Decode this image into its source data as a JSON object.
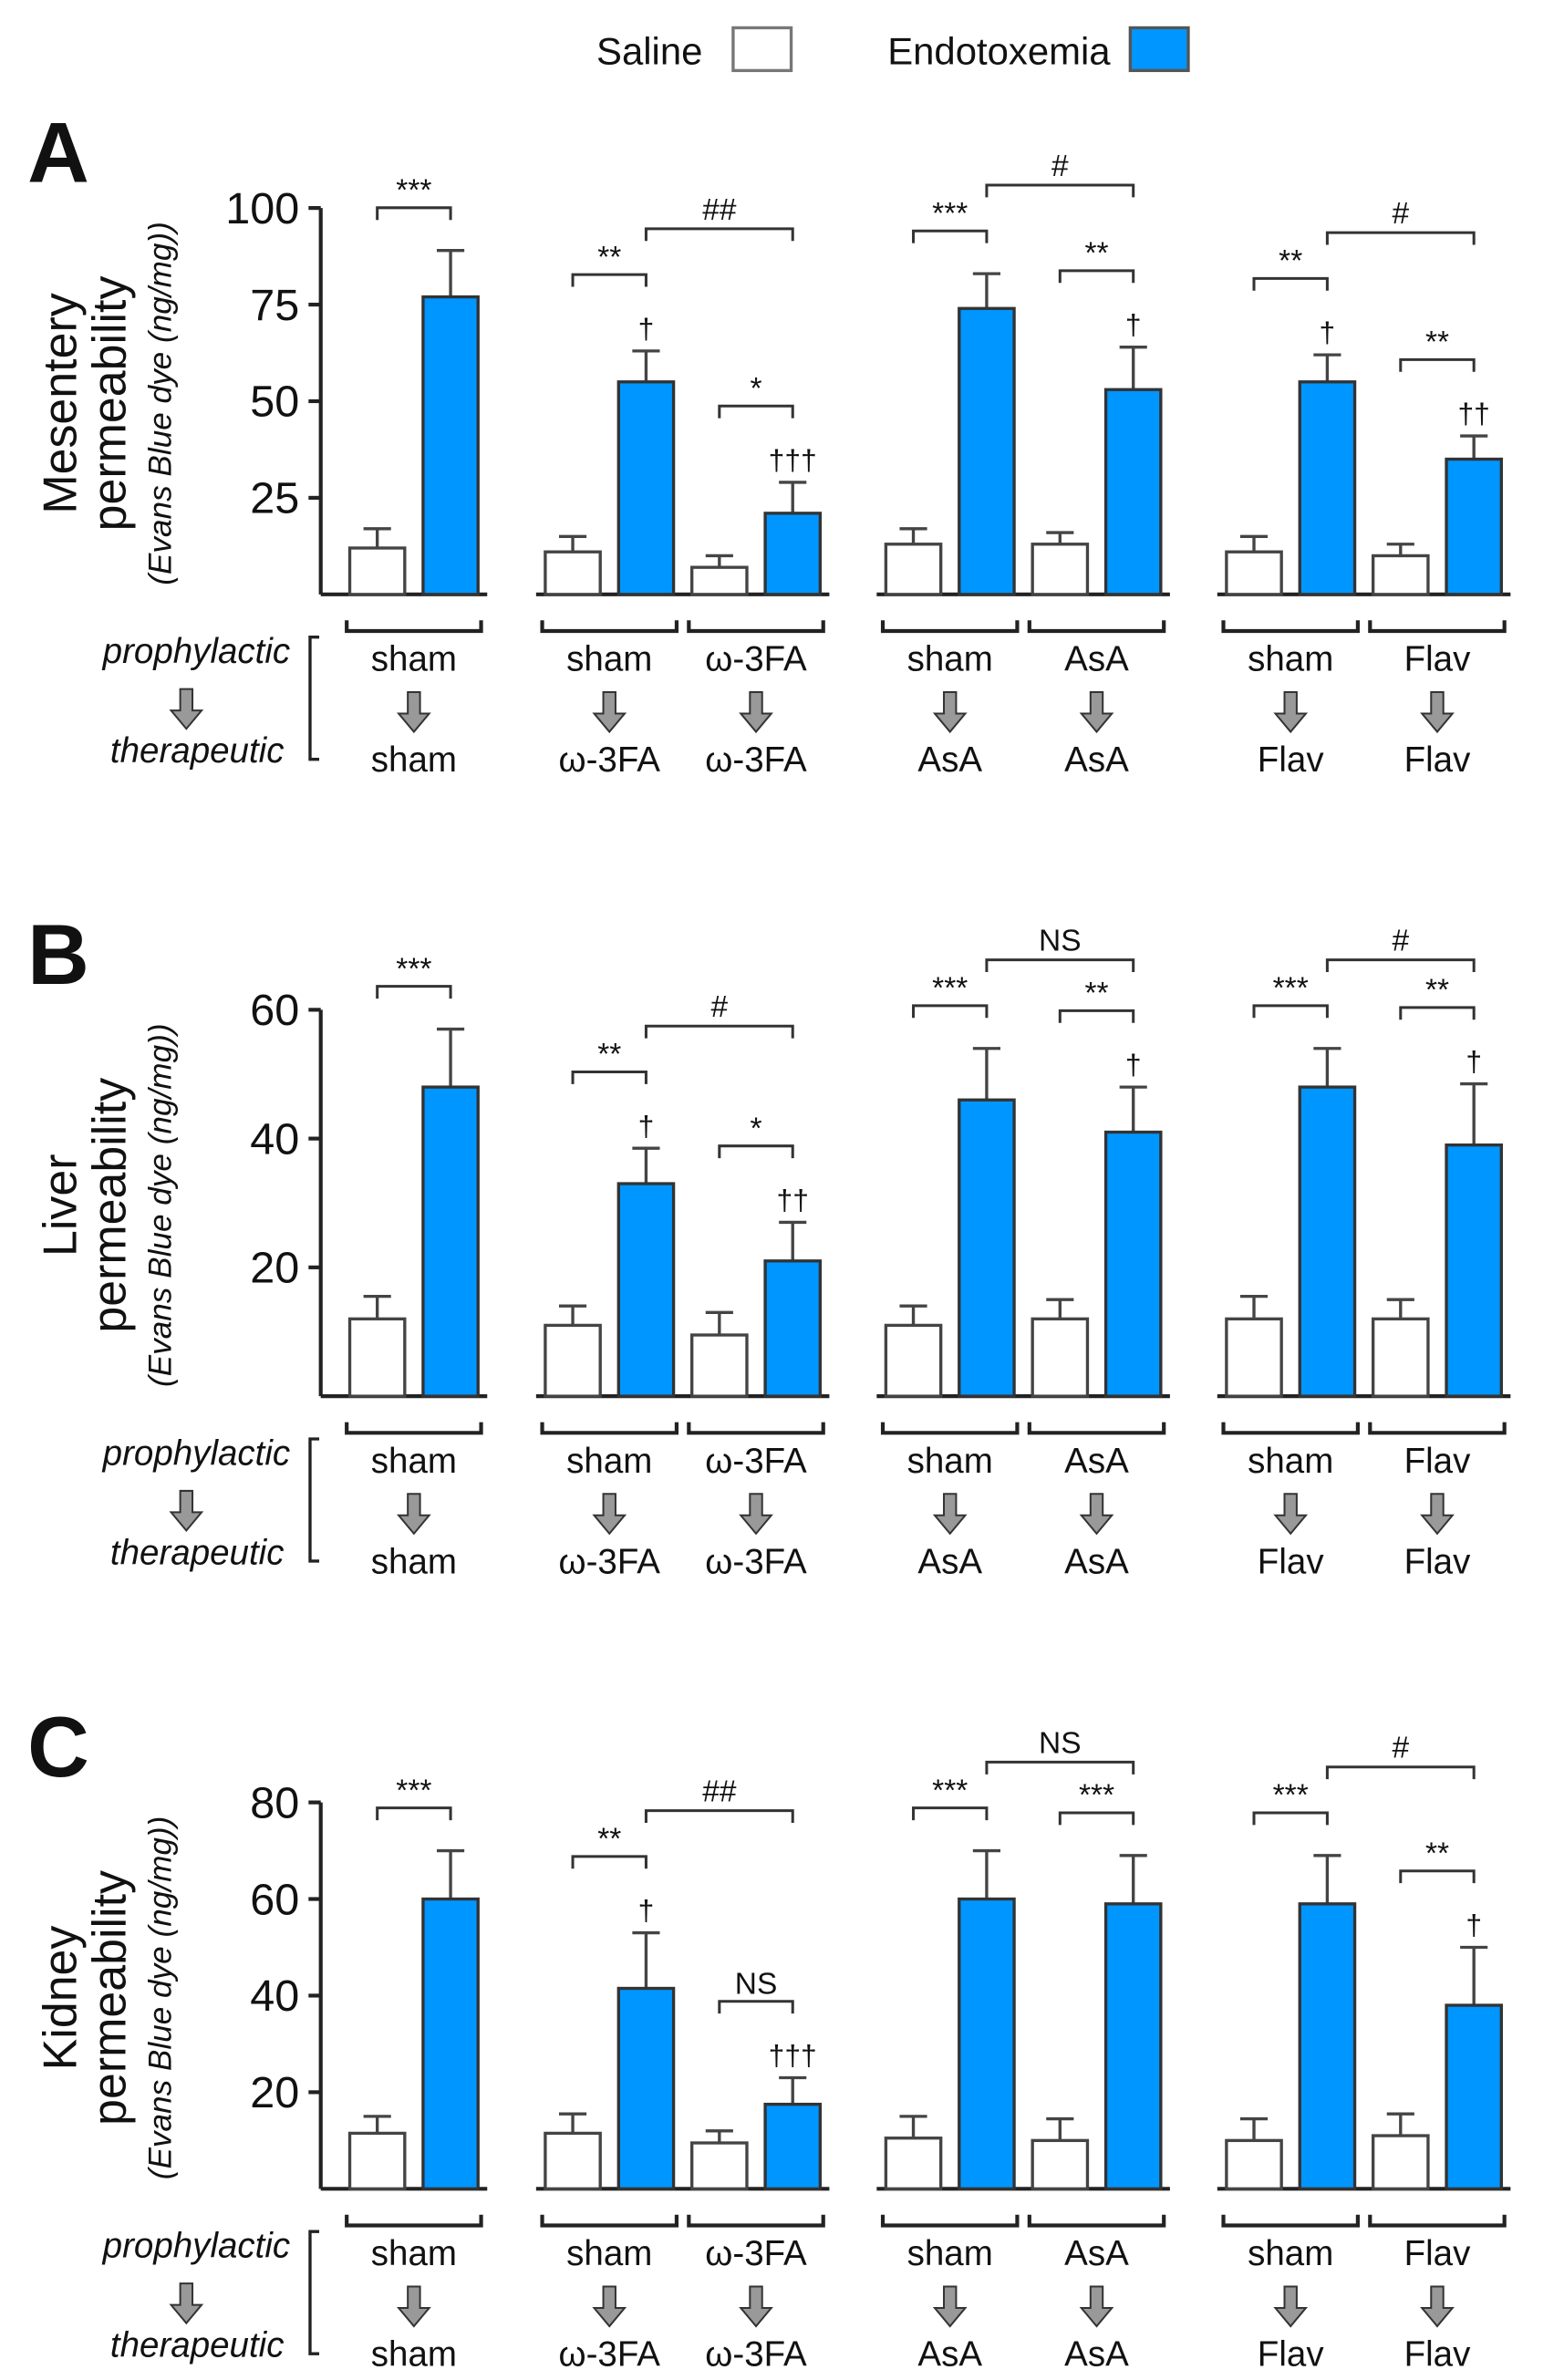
{
  "legend": [
    {
      "label": "Saline",
      "color": "#ffffff"
    },
    {
      "label": "Endotoxemia",
      "color": "#0096ff"
    }
  ],
  "row_labels": {
    "prophylactic": "prophylactic",
    "therapeutic": "therapeutic"
  },
  "chart_data": [
    {
      "type": "bar",
      "panel": "A",
      "ylabel_main": [
        "Mesentery",
        "permeability"
      ],
      "ylabel_sub": "(Evans Blue dye (ng/mg))",
      "ylim": [
        0,
        100
      ],
      "yticks": [
        "25",
        "50",
        "75",
        "100"
      ],
      "treatments": [
        {
          "prophylactic": "sham",
          "therapeutic": "sham",
          "saline": 12,
          "saline_err": 5,
          "endotoxemia": 77,
          "endotoxemia_err": 12,
          "sig": "***",
          "dagger": ""
        },
        {
          "prophylactic": "sham",
          "therapeutic": "ω-3FA",
          "saline": 11,
          "saline_err": 4,
          "endotoxemia": 55,
          "endotoxemia_err": 8,
          "sig": "**",
          "dagger": "†"
        },
        {
          "prophylactic": "ω-3FA",
          "therapeutic": "ω-3FA",
          "saline": 7,
          "saline_err": 3,
          "endotoxemia": 21,
          "endotoxemia_err": 8,
          "sig": "*",
          "dagger": "†††"
        },
        {
          "prophylactic": "sham",
          "therapeutic": "AsA",
          "saline": 13,
          "saline_err": 4,
          "endotoxemia": 74,
          "endotoxemia_err": 9,
          "sig": "***",
          "dagger": ""
        },
        {
          "prophylactic": "AsA",
          "therapeutic": "AsA",
          "saline": 13,
          "saline_err": 3,
          "endotoxemia": 53,
          "endotoxemia_err": 11,
          "sig": "**",
          "dagger": "†"
        },
        {
          "prophylactic": "sham",
          "therapeutic": "Flav",
          "saline": 11,
          "saline_err": 4,
          "endotoxemia": 55,
          "endotoxemia_err": 7,
          "sig": "**",
          "dagger": "†"
        },
        {
          "prophylactic": "Flav",
          "therapeutic": "Flav",
          "saline": 10,
          "saline_err": 3,
          "endotoxemia": 35,
          "endotoxemia_err": 6,
          "sig": "**",
          "dagger": "††"
        }
      ],
      "cross": [
        {
          "a": 1,
          "b": 2,
          "label": "##"
        },
        {
          "a": 3,
          "b": 4,
          "label": "#"
        },
        {
          "a": 5,
          "b": 6,
          "label": "#"
        }
      ]
    },
    {
      "type": "bar",
      "panel": "B",
      "ylabel_main": [
        "Liver",
        "permeability"
      ],
      "ylabel_sub": "(Evans Blue dye (ng/mg))",
      "ylim": [
        0,
        60
      ],
      "yticks": [
        "20",
        "40",
        "60"
      ],
      "treatments": [
        {
          "prophylactic": "sham",
          "therapeutic": "sham",
          "saline": 12,
          "saline_err": 3.5,
          "endotoxemia": 48,
          "endotoxemia_err": 9,
          "sig": "***",
          "dagger": ""
        },
        {
          "prophylactic": "sham",
          "therapeutic": "ω-3FA",
          "saline": 11,
          "saline_err": 3,
          "endotoxemia": 33,
          "endotoxemia_err": 5.5,
          "sig": "**",
          "dagger": "†"
        },
        {
          "prophylactic": "ω-3FA",
          "therapeutic": "ω-3FA",
          "saline": 9.5,
          "saline_err": 3.5,
          "endotoxemia": 21,
          "endotoxemia_err": 6,
          "sig": "*",
          "dagger": "††"
        },
        {
          "prophylactic": "sham",
          "therapeutic": "AsA",
          "saline": 11,
          "saline_err": 3,
          "endotoxemia": 46,
          "endotoxemia_err": 8,
          "sig": "***",
          "dagger": ""
        },
        {
          "prophylactic": "AsA",
          "therapeutic": "AsA",
          "saline": 12,
          "saline_err": 3,
          "endotoxemia": 41,
          "endotoxemia_err": 7,
          "sig": "**",
          "dagger": "†"
        },
        {
          "prophylactic": "sham",
          "therapeutic": "Flav",
          "saline": 12,
          "saline_err": 3.5,
          "endotoxemia": 48,
          "endotoxemia_err": 6,
          "sig": "***",
          "dagger": ""
        },
        {
          "prophylactic": "Flav",
          "therapeutic": "Flav",
          "saline": 12,
          "saline_err": 3,
          "endotoxemia": 39,
          "endotoxemia_err": 9.5,
          "sig": "**",
          "dagger": "†"
        }
      ],
      "cross": [
        {
          "a": 1,
          "b": 2,
          "label": "#"
        },
        {
          "a": 3,
          "b": 4,
          "label": "NS"
        },
        {
          "a": 5,
          "b": 6,
          "label": "#"
        }
      ]
    },
    {
      "type": "bar",
      "panel": "C",
      "ylabel_main": [
        "Kidney",
        "permeability"
      ],
      "ylabel_sub": "(Evans Blue dye (ng/mg))",
      "ylim": [
        0,
        80
      ],
      "yticks": [
        "20",
        "40",
        "60",
        "80"
      ],
      "treatments": [
        {
          "prophylactic": "sham",
          "therapeutic": "sham",
          "saline": 11.5,
          "saline_err": 3.5,
          "endotoxemia": 60,
          "endotoxemia_err": 10,
          "sig": "***",
          "dagger": ""
        },
        {
          "prophylactic": "sham",
          "therapeutic": "ω-3FA",
          "saline": 11.5,
          "saline_err": 4,
          "endotoxemia": 41.5,
          "endotoxemia_err": 11.5,
          "sig": "**",
          "dagger": "†"
        },
        {
          "prophylactic": "ω-3FA",
          "therapeutic": "ω-3FA",
          "saline": 9.5,
          "saline_err": 2.5,
          "endotoxemia": 17.5,
          "endotoxemia_err": 5.5,
          "sig": "NS",
          "dagger": "†††"
        },
        {
          "prophylactic": "sham",
          "therapeutic": "AsA",
          "saline": 10.5,
          "saline_err": 4.5,
          "endotoxemia": 60,
          "endotoxemia_err": 10,
          "sig": "***",
          "dagger": ""
        },
        {
          "prophylactic": "AsA",
          "therapeutic": "AsA",
          "saline": 10,
          "saline_err": 4.5,
          "endotoxemia": 59,
          "endotoxemia_err": 10,
          "sig": "***",
          "dagger": ""
        },
        {
          "prophylactic": "sham",
          "therapeutic": "Flav",
          "saline": 10,
          "saline_err": 4.5,
          "endotoxemia": 59,
          "endotoxemia_err": 10,
          "sig": "***",
          "dagger": ""
        },
        {
          "prophylactic": "Flav",
          "therapeutic": "Flav",
          "saline": 11,
          "saline_err": 4.5,
          "endotoxemia": 38,
          "endotoxemia_err": 12,
          "sig": "**",
          "dagger": "†"
        }
      ],
      "cross": [
        {
          "a": 1,
          "b": 2,
          "label": "##"
        },
        {
          "a": 3,
          "b": 4,
          "label": "NS"
        },
        {
          "a": 5,
          "b": 6,
          "label": "#"
        }
      ]
    }
  ]
}
